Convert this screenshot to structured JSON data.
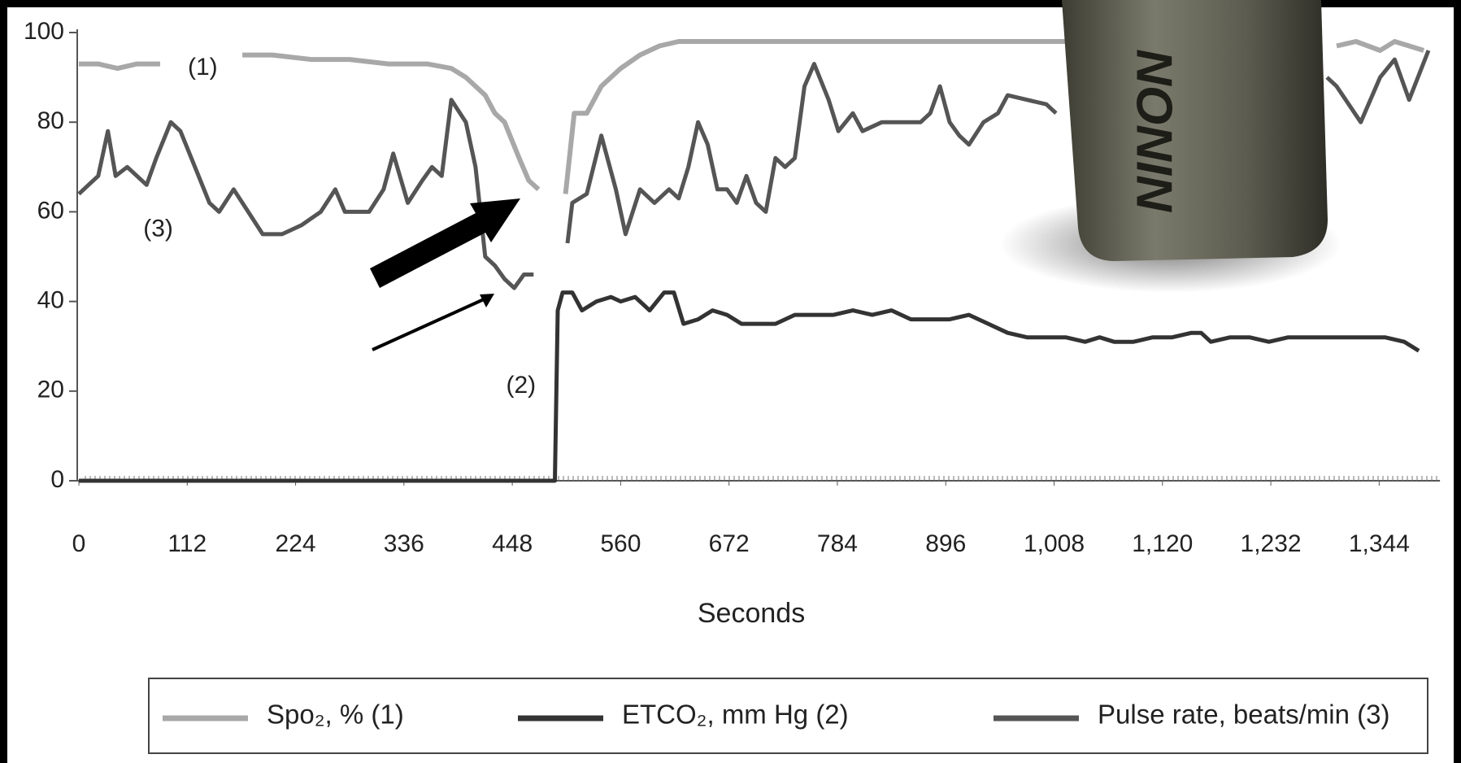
{
  "chart_data": {
    "type": "line",
    "x_label": "Seconds",
    "xlim": [
      0,
      1390
    ],
    "xticks": [
      0,
      112,
      224,
      336,
      448,
      560,
      672,
      784,
      896,
      {
        "value": 1008,
        "label": "1,008"
      },
      {
        "value": 1120,
        "label": "1,120"
      },
      {
        "value": 1232,
        "label": "1,232"
      },
      {
        "value": 1344,
        "label": "1,344"
      }
    ],
    "ylim": [
      0,
      100
    ],
    "yticks": [
      0,
      20,
      40,
      60,
      80,
      100
    ],
    "annotations": [
      {
        "text": "(1)",
        "x": 128,
        "y": 92
      },
      {
        "text": "(3)",
        "x": 82,
        "y": 56
      },
      {
        "text": "(2)",
        "x": 457,
        "y": 21
      }
    ],
    "device_logo": "NONIN",
    "series": [
      {
        "name": "Spo₂, % (1)",
        "color": "#a8a8a8",
        "x": [
          0,
          20,
          40,
          60,
          84,
          100,
          169,
          200,
          240,
          280,
          320,
          360,
          385,
          400,
          420,
          430,
          440,
          455,
          465,
          475,
          490,
          503,
          512,
          525,
          540,
          560,
          580,
          600,
          620,
          700,
          800,
          900,
          1000,
          1050,
          1150,
          1300,
          1320,
          1345,
          1360,
          1390
        ],
        "values": [
          93,
          93,
          92,
          93,
          93,
          null,
          95,
          95,
          94,
          94,
          93,
          93,
          92,
          90,
          86,
          82,
          80,
          72,
          67,
          65,
          null,
          64,
          82,
          82,
          88,
          92,
          95,
          97,
          98,
          98,
          98,
          98,
          98,
          98,
          null,
          97,
          98,
          96,
          98,
          96
        ]
      },
      {
        "name": "ETCO₂, mm Hg (2)",
        "color": "#333333",
        "x": [
          0,
          100,
          200,
          300,
          400,
          492,
          495,
          500,
          510,
          520,
          535,
          550,
          560,
          575,
          590,
          605,
          615,
          625,
          640,
          655,
          670,
          685,
          700,
          720,
          740,
          760,
          780,
          800,
          820,
          840,
          860,
          880,
          900,
          920,
          940,
          960,
          980,
          1000,
          1020,
          1040,
          1055,
          1070,
          1090,
          1110,
          1130,
          1150,
          1160,
          1170,
          1190,
          1210,
          1230,
          1250,
          1270,
          1290,
          1310,
          1330,
          1350,
          1370,
          1385
        ],
        "values": [
          0,
          0,
          0,
          0,
          0,
          0,
          38,
          42,
          42,
          38,
          40,
          41,
          40,
          41,
          38,
          42,
          42,
          35,
          36,
          38,
          37,
          35,
          35,
          35,
          37,
          37,
          37,
          38,
          37,
          38,
          36,
          36,
          36,
          37,
          35,
          33,
          32,
          32,
          32,
          31,
          32,
          31,
          31,
          32,
          32,
          33,
          33,
          31,
          32,
          32,
          31,
          32,
          32,
          32,
          32,
          32,
          32,
          31,
          29
        ]
      },
      {
        "name": "Pulse rate, beats/min (3)",
        "color": "#555555",
        "x": [
          0,
          10,
          20,
          30,
          38,
          50,
          60,
          70,
          80,
          95,
          105,
          120,
          135,
          145,
          160,
          175,
          190,
          210,
          230,
          250,
          265,
          275,
          300,
          315,
          325,
          340,
          355,
          365,
          375,
          385,
          400,
          410,
          420,
          430,
          440,
          450,
          460,
          470,
          485,
          505,
          510,
          525,
          540,
          555,
          565,
          580,
          595,
          610,
          620,
          630,
          640,
          650,
          660,
          670,
          680,
          690,
          700,
          710,
          720,
          730,
          740,
          750,
          760,
          775,
          785,
          800,
          810,
          830,
          850,
          870,
          880,
          890,
          900,
          910,
          920,
          935,
          950,
          960,
          980,
          1000,
          1010,
          1150,
          1290,
          1300,
          1325,
          1345,
          1360,
          1375,
          1395
        ],
        "values": [
          64,
          66,
          68,
          78,
          68,
          70,
          68,
          66,
          72,
          80,
          78,
          70,
          62,
          60,
          65,
          60,
          55,
          55,
          57,
          60,
          65,
          60,
          60,
          65,
          73,
          62,
          67,
          70,
          68,
          85,
          80,
          70,
          50,
          48,
          45,
          43,
          46,
          46,
          null,
          53,
          62,
          64,
          77,
          65,
          55,
          65,
          62,
          65,
          63,
          70,
          80,
          75,
          65,
          65,
          62,
          68,
          62,
          60,
          72,
          70,
          72,
          88,
          93,
          85,
          78,
          82,
          78,
          80,
          80,
          80,
          82,
          88,
          80,
          77,
          75,
          80,
          82,
          86,
          85,
          84,
          82,
          null,
          90,
          88,
          80,
          90,
          94,
          85,
          96
        ]
      }
    ]
  }
}
